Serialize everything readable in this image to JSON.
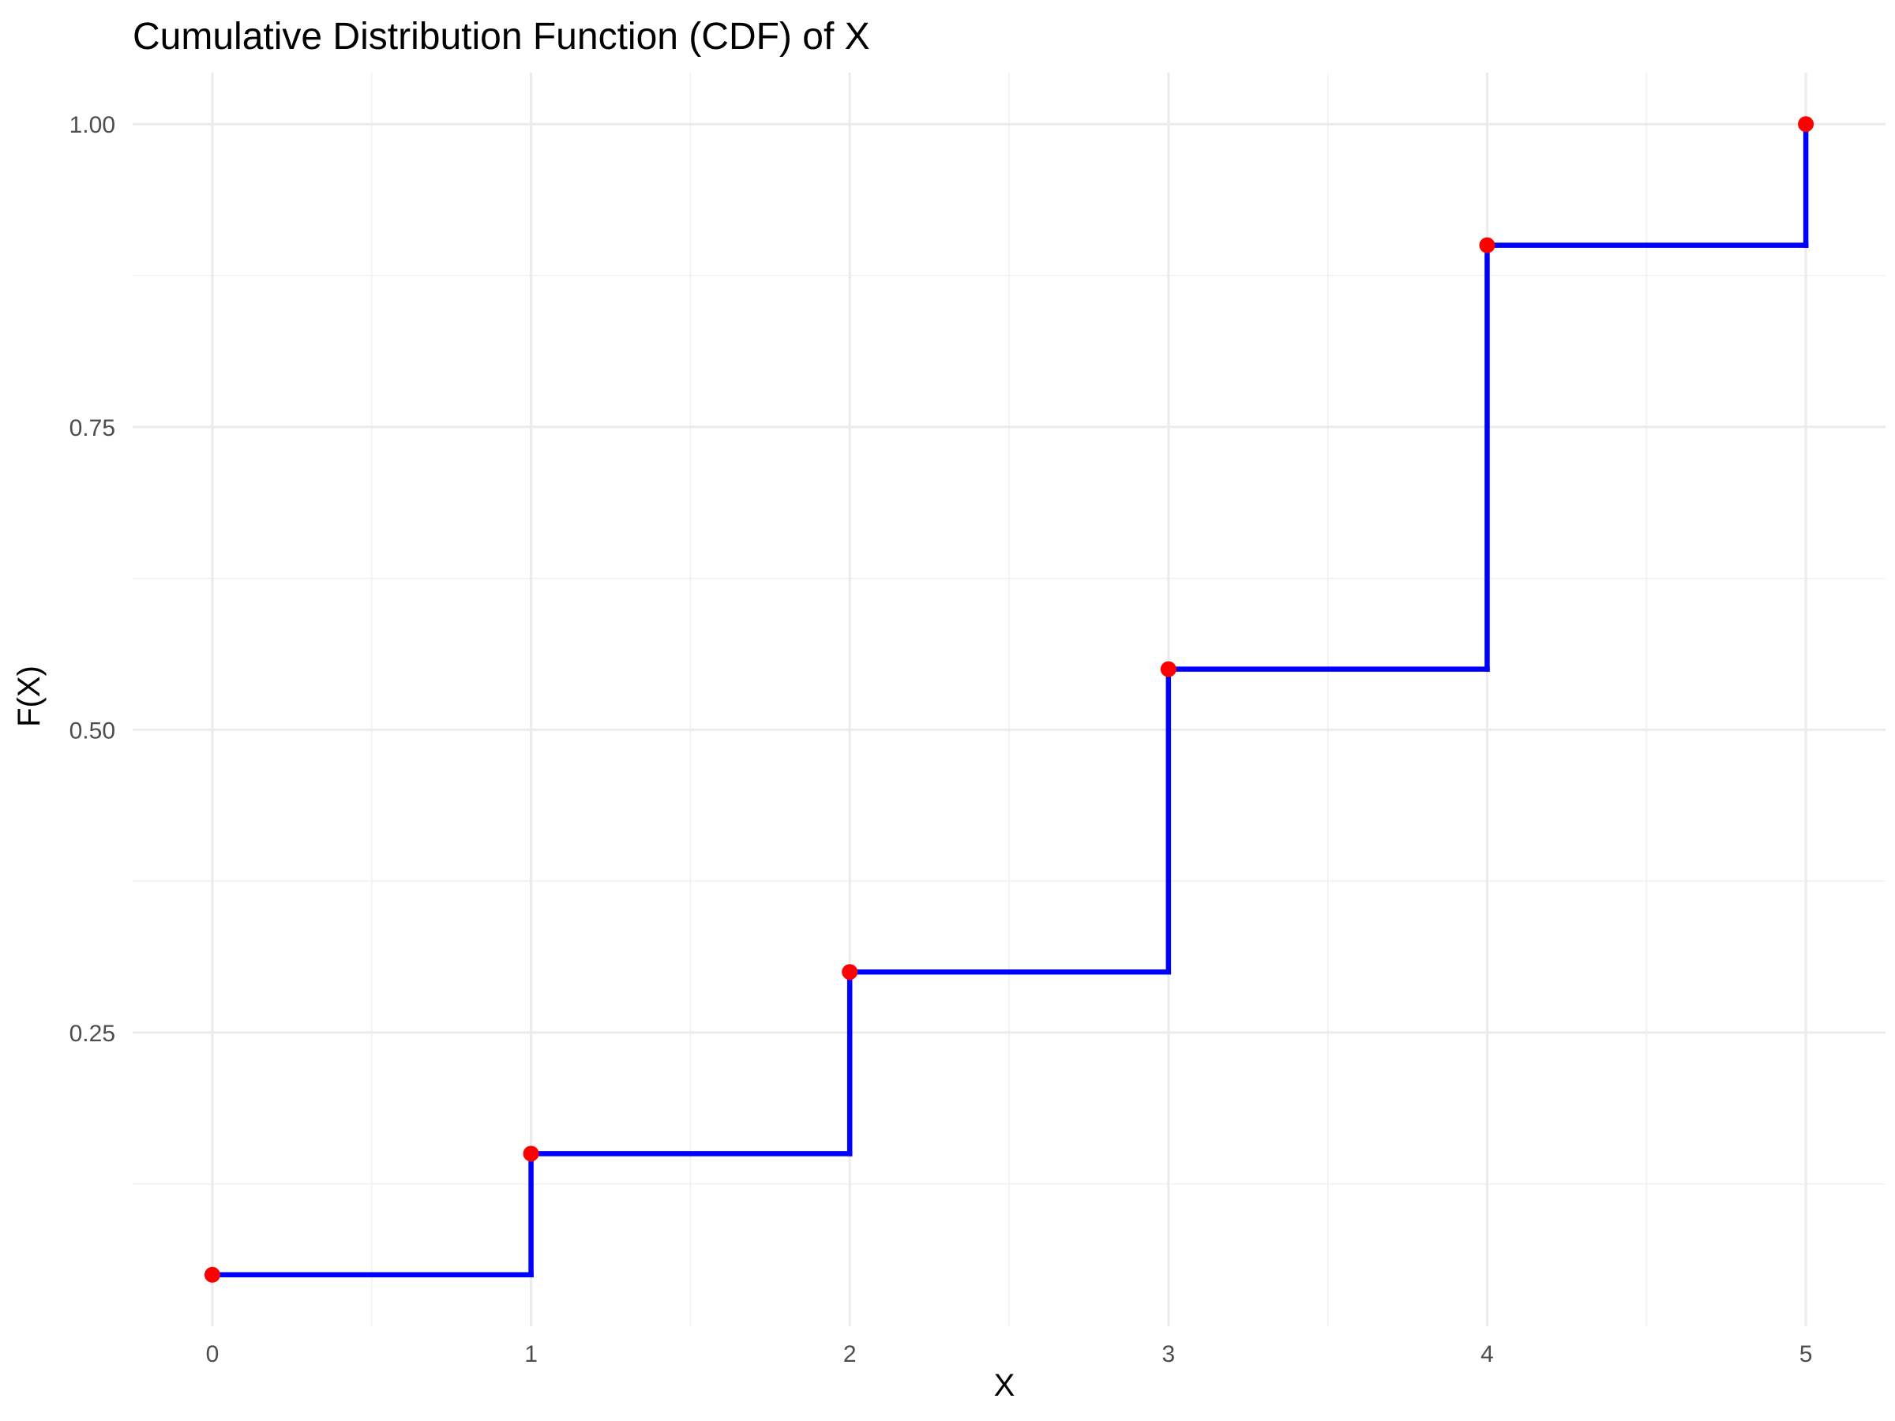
{
  "chart_data": {
    "type": "line",
    "title": "Cumulative Distribution Function (CDF) of X",
    "xlabel": "X",
    "ylabel": "F(X)",
    "xlim": [
      -0.25,
      5.25
    ],
    "ylim": [
      0.0075,
      1.0425
    ],
    "x_ticks": [
      "0",
      "1",
      "2",
      "3",
      "4",
      "5"
    ],
    "y_ticks": [
      "0.25",
      "0.50",
      "0.75",
      "1.00"
    ],
    "grid": true,
    "legend": "none",
    "step": "hv",
    "series": [
      {
        "x": [
          0,
          1,
          2,
          3,
          4,
          5
        ],
        "values": [
          0.05,
          0.15,
          0.3,
          0.55,
          0.9,
          1.0
        ],
        "line_color": "#0000ff",
        "point_color": "#ff0000"
      }
    ]
  }
}
